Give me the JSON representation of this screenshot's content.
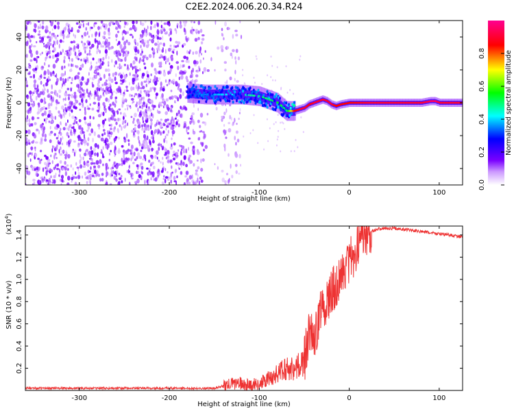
{
  "title": "C2E2.2024.006.20.34.R24",
  "chart_data": [
    {
      "type": "heatmap",
      "xlabel": "Height of straight line (km)",
      "ylabel": "Frequency (Hz)",
      "xlim": [
        -360,
        126
      ],
      "ylim": [
        -50,
        50
      ],
      "x_ticks": [
        "-300",
        "-200",
        "-100",
        "0",
        "100"
      ],
      "x_tick_values": [
        -300,
        -200,
        -100,
        0,
        100
      ],
      "y_ticks": [
        "40",
        "20",
        "0",
        "-20",
        "-40"
      ],
      "y_tick_values": [
        40,
        20,
        0,
        -20,
        -40
      ],
      "colorbar": {
        "label": "Normalized spectral amplitude",
        "range": [
          0,
          1
        ],
        "ticks": [
          "0.0",
          "0.2",
          "0.4",
          "0.6",
          "0.8"
        ],
        "tick_values": [
          0.0,
          0.2,
          0.4,
          0.6,
          0.8
        ],
        "colormap": [
          "#ffffff",
          "#7a00ff",
          "#0000ff",
          "#00ffff",
          "#00ff00",
          "#ffff00",
          "#ff0000",
          "#ff0090"
        ]
      },
      "noise_region_x": [
        -360,
        -120
      ],
      "ridge": {
        "x": [
          -180,
          -160,
          -140,
          -120,
          -100,
          -90,
          -80,
          -70,
          -62,
          -56,
          -50,
          -45,
          -40,
          -35,
          -30,
          -25,
          -20,
          -15,
          -10,
          0,
          20,
          40,
          60,
          80,
          90,
          95,
          100,
          126
        ],
        "freq_hz": [
          6,
          5,
          5,
          5,
          4,
          2,
          0,
          -5,
          -5,
          -4,
          -3,
          -1,
          0,
          1,
          2,
          1,
          -1,
          -2,
          -1,
          0,
          0,
          0,
          0,
          0,
          1,
          1,
          0,
          0
        ],
        "amplitude": [
          0.3,
          0.35,
          0.4,
          0.45,
          0.5,
          0.5,
          0.55,
          0.5,
          0.85,
          0.9,
          0.9,
          0.85,
          0.9,
          0.9,
          0.9,
          0.9,
          0.9,
          0.85,
          0.85,
          0.85,
          0.9,
          0.9,
          0.9,
          0.9,
          0.95,
          0.95,
          0.9,
          0.9
        ]
      }
    },
    {
      "type": "line",
      "xlabel": "Height of straight line (km)",
      "ylabel": "SNR (10 * v/v)",
      "scale_label": "(x10",
      "scale_exponent": "4",
      "scale_suffix": ")",
      "xlim": [
        -360,
        126
      ],
      "ylim": [
        0,
        1.48
      ],
      "x_ticks": [
        "-300",
        "-200",
        "-100",
        "0",
        "100"
      ],
      "x_tick_values": [
        -300,
        -200,
        -100,
        0,
        100
      ],
      "y_ticks": [
        "0.2",
        "0.4",
        "0.6",
        "0.8",
        "1.0",
        "1.2",
        "1.4"
      ],
      "y_tick_values": [
        0.2,
        0.4,
        0.6,
        0.8,
        1.0,
        1.2,
        1.4
      ],
      "line_color": "#ee3333",
      "series": [
        {
          "x": [
            -360,
            -300,
            -250,
            -200,
            -150,
            -135,
            -125,
            -115,
            -100,
            -90,
            -80,
            -70,
            -60,
            -50,
            -45,
            -40,
            -35,
            -30,
            -25,
            -20,
            -15,
            -10,
            -5,
            0,
            5,
            10,
            20,
            30,
            40,
            50,
            60,
            70,
            80,
            90,
            100,
            110,
            126
          ],
          "y": [
            0.02,
            0.02,
            0.02,
            0.02,
            0.02,
            0.05,
            0.07,
            0.05,
            0.06,
            0.1,
            0.15,
            0.2,
            0.2,
            0.25,
            0.5,
            0.45,
            0.6,
            0.72,
            0.8,
            0.85,
            0.95,
            1.0,
            1.1,
            1.15,
            1.2,
            1.3,
            1.42,
            1.45,
            1.46,
            1.46,
            1.45,
            1.44,
            1.43,
            1.42,
            1.41,
            1.4,
            1.38
          ]
        }
      ]
    }
  ]
}
